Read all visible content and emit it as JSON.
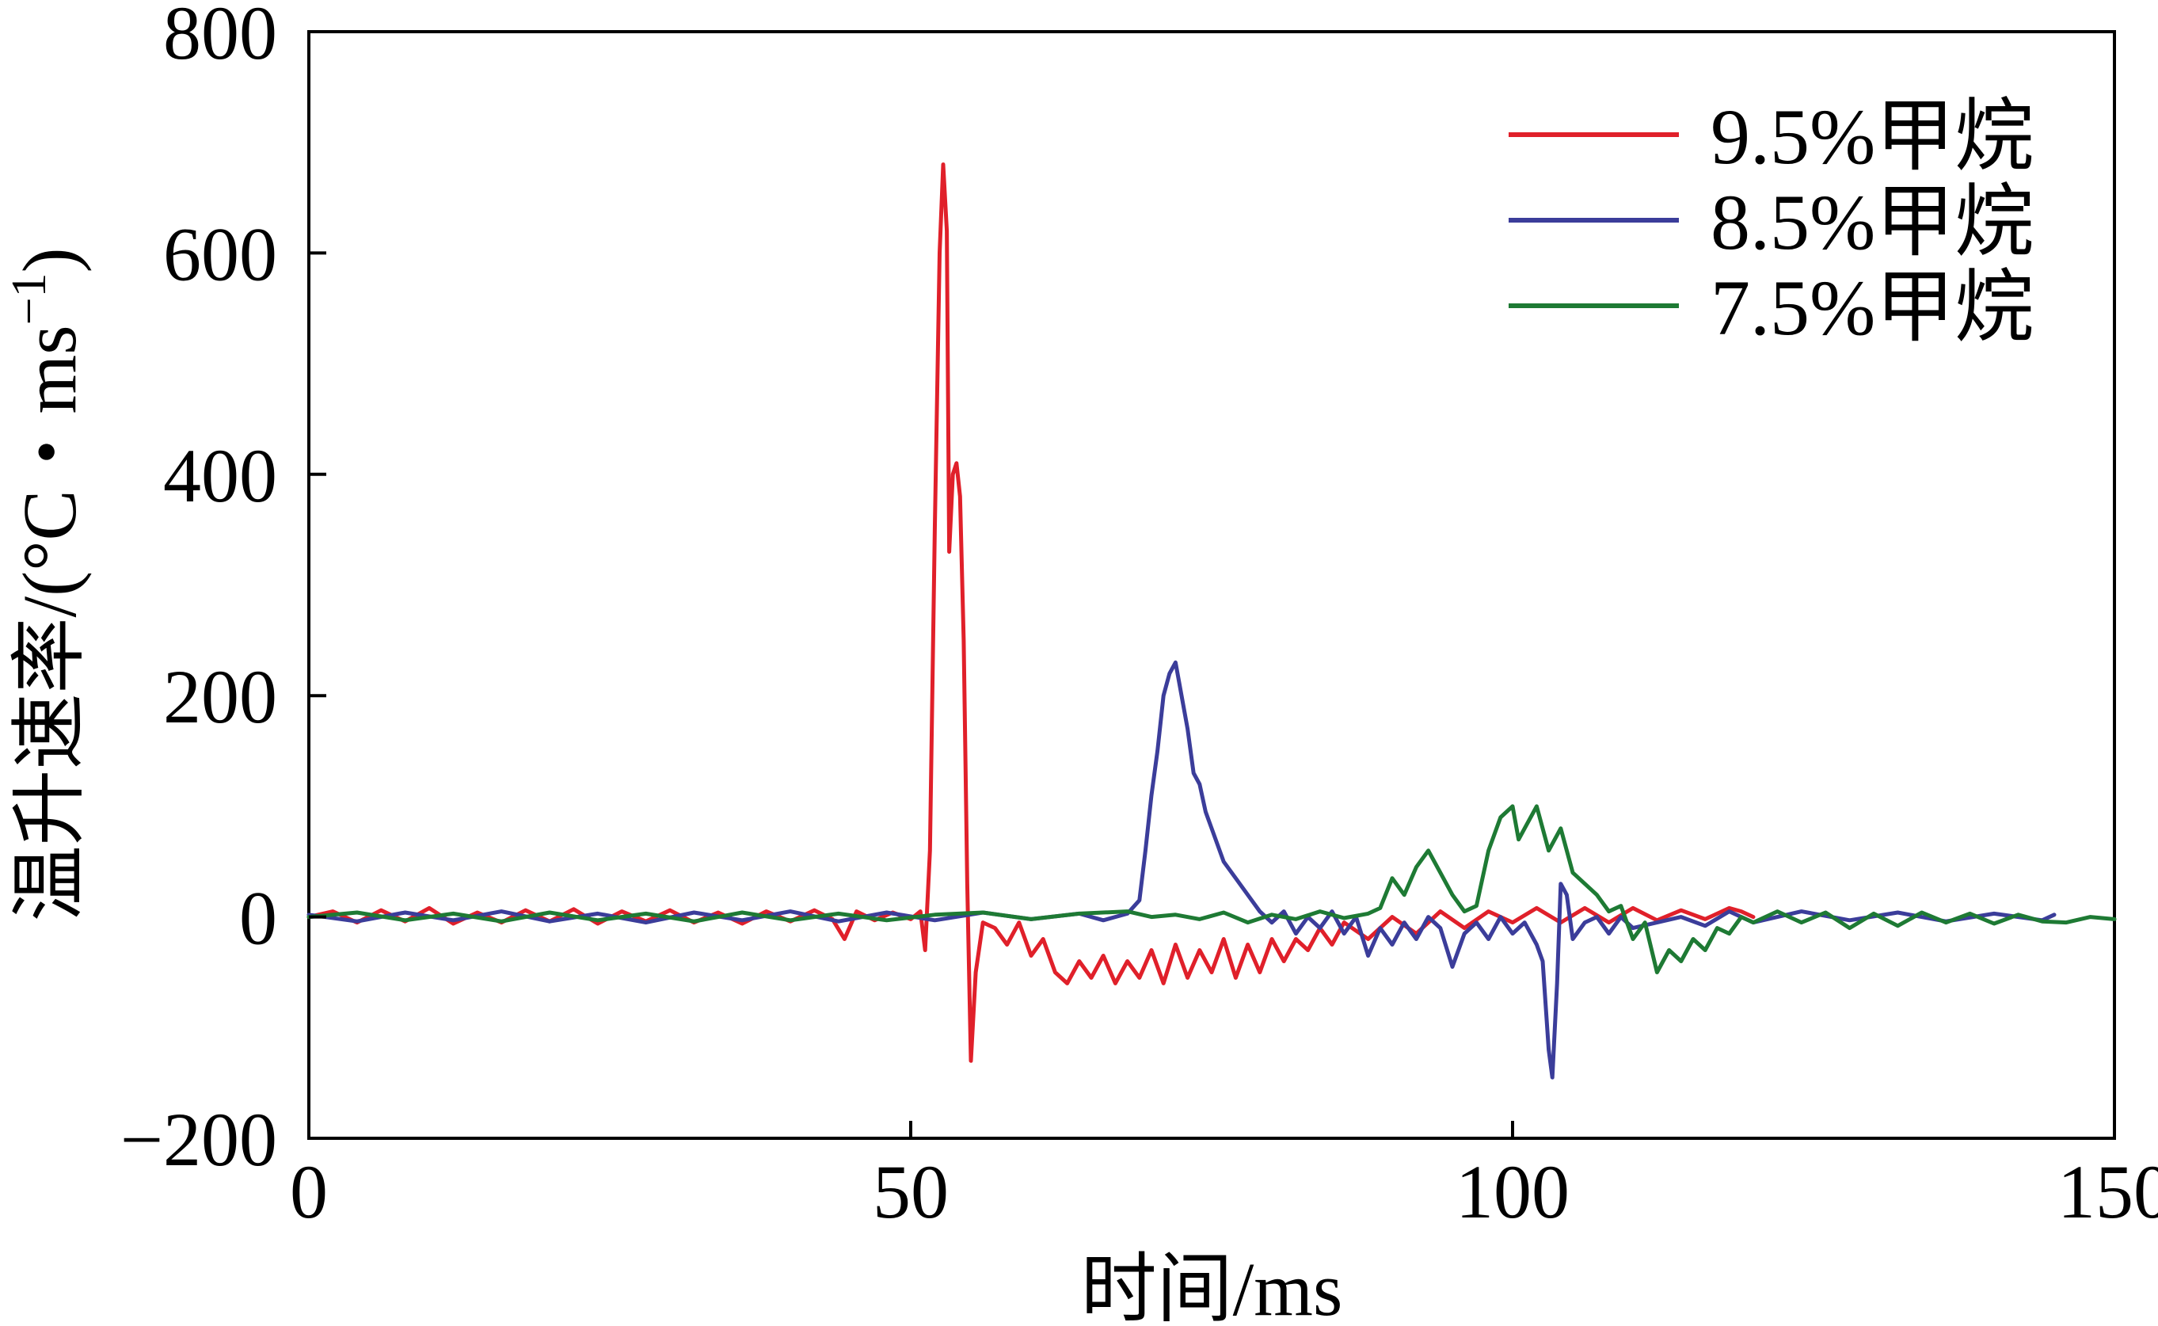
{
  "chart_data": {
    "type": "line",
    "title": "",
    "xlabel": "时间/ms",
    "ylabel": "温升速率/(°C・ms",
    "ylabel_sup": "−1",
    "ylabel_close": ")",
    "xlim": [
      0,
      150
    ],
    "ylim": [
      -200,
      800
    ],
    "xticks": [
      0,
      50,
      100,
      150
    ],
    "xtick_labels": [
      "0",
      "50",
      "100",
      "150"
    ],
    "yticks": [
      -200,
      0,
      200,
      400,
      600,
      800
    ],
    "ytick_labels": [
      "−200",
      "0",
      "200",
      "400",
      "600",
      "800"
    ],
    "grid": false,
    "legend_position": "top-right",
    "series": [
      {
        "name": "9.5%甲烷",
        "color": "#e0202a",
        "points": [
          [
            0,
            0
          ],
          [
            2,
            5
          ],
          [
            4,
            -5
          ],
          [
            6,
            6
          ],
          [
            8,
            -4
          ],
          [
            10,
            8
          ],
          [
            12,
            -6
          ],
          [
            14,
            4
          ],
          [
            16,
            -5
          ],
          [
            18,
            6
          ],
          [
            20,
            -4
          ],
          [
            22,
            7
          ],
          [
            24,
            -6
          ],
          [
            26,
            5
          ],
          [
            28,
            -4
          ],
          [
            30,
            6
          ],
          [
            32,
            -5
          ],
          [
            34,
            4
          ],
          [
            36,
            -6
          ],
          [
            38,
            5
          ],
          [
            40,
            -4
          ],
          [
            42,
            6
          ],
          [
            43.5,
            -2
          ],
          [
            44.5,
            -20
          ],
          [
            45.5,
            5
          ],
          [
            47,
            -3
          ],
          [
            48.5,
            4
          ],
          [
            50,
            -2
          ],
          [
            50.8,
            5
          ],
          [
            51.2,
            -30
          ],
          [
            51.6,
            60
          ],
          [
            52,
            350
          ],
          [
            52.4,
            600
          ],
          [
            52.7,
            680
          ],
          [
            53,
            620
          ],
          [
            53.2,
            330
          ],
          [
            53.5,
            400
          ],
          [
            53.8,
            410
          ],
          [
            54.1,
            380
          ],
          [
            54.4,
            250
          ],
          [
            54.7,
            30
          ],
          [
            55,
            -130
          ],
          [
            55.4,
            -50
          ],
          [
            56,
            -5
          ],
          [
            57,
            -10
          ],
          [
            58,
            -25
          ],
          [
            59,
            -5
          ],
          [
            60,
            -35
          ],
          [
            61,
            -20
          ],
          [
            62,
            -50
          ],
          [
            63,
            -60
          ],
          [
            64,
            -40
          ],
          [
            65,
            -55
          ],
          [
            66,
            -35
          ],
          [
            67,
            -60
          ],
          [
            68,
            -40
          ],
          [
            69,
            -55
          ],
          [
            70,
            -30
          ],
          [
            71,
            -60
          ],
          [
            72,
            -25
          ],
          [
            73,
            -55
          ],
          [
            74,
            -30
          ],
          [
            75,
            -50
          ],
          [
            76,
            -20
          ],
          [
            77,
            -55
          ],
          [
            78,
            -25
          ],
          [
            79,
            -50
          ],
          [
            80,
            -20
          ],
          [
            81,
            -40
          ],
          [
            82,
            -20
          ],
          [
            83,
            -30
          ],
          [
            84,
            -10
          ],
          [
            85,
            -25
          ],
          [
            86,
            -5
          ],
          [
            88,
            -20
          ],
          [
            90,
            0
          ],
          [
            92,
            -15
          ],
          [
            94,
            5
          ],
          [
            96,
            -10
          ],
          [
            98,
            5
          ],
          [
            100,
            -5
          ],
          [
            102,
            8
          ],
          [
            104,
            -5
          ],
          [
            106,
            8
          ],
          [
            108,
            -5
          ],
          [
            110,
            8
          ],
          [
            112,
            -3
          ],
          [
            114,
            6
          ],
          [
            116,
            -2
          ],
          [
            118,
            8
          ],
          [
            119,
            5
          ],
          [
            120,
            0
          ]
        ]
      },
      {
        "name": "8.5%甲烷",
        "color": "#3b3d9a",
        "points": [
          [
            0,
            2
          ],
          [
            4,
            -4
          ],
          [
            8,
            4
          ],
          [
            12,
            -3
          ],
          [
            16,
            5
          ],
          [
            20,
            -4
          ],
          [
            24,
            3
          ],
          [
            28,
            -5
          ],
          [
            32,
            4
          ],
          [
            36,
            -3
          ],
          [
            40,
            5
          ],
          [
            44,
            -4
          ],
          [
            48,
            4
          ],
          [
            52,
            -3
          ],
          [
            56,
            4
          ],
          [
            60,
            -2
          ],
          [
            64,
            3
          ],
          [
            66,
            -3
          ],
          [
            68,
            3
          ],
          [
            69,
            15
          ],
          [
            69.5,
            60
          ],
          [
            70,
            110
          ],
          [
            70.5,
            150
          ],
          [
            71,
            200
          ],
          [
            71.5,
            220
          ],
          [
            72,
            230
          ],
          [
            72.5,
            200
          ],
          [
            73,
            170
          ],
          [
            73.5,
            130
          ],
          [
            74,
            120
          ],
          [
            74.5,
            95
          ],
          [
            75,
            80
          ],
          [
            75.5,
            65
          ],
          [
            76,
            50
          ],
          [
            77,
            35
          ],
          [
            78,
            20
          ],
          [
            79,
            5
          ],
          [
            80,
            -5
          ],
          [
            81,
            5
          ],
          [
            82,
            -15
          ],
          [
            83,
            0
          ],
          [
            84,
            -10
          ],
          [
            85,
            5
          ],
          [
            86,
            -15
          ],
          [
            87,
            0
          ],
          [
            88,
            -35
          ],
          [
            89,
            -10
          ],
          [
            90,
            -25
          ],
          [
            91,
            -5
          ],
          [
            92,
            -20
          ],
          [
            93,
            0
          ],
          [
            94,
            -10
          ],
          [
            95,
            -45
          ],
          [
            96,
            -15
          ],
          [
            97,
            -5
          ],
          [
            98,
            -20
          ],
          [
            99,
            0
          ],
          [
            100,
            -15
          ],
          [
            101,
            -5
          ],
          [
            102,
            -25
          ],
          [
            102.5,
            -40
          ],
          [
            103,
            -120
          ],
          [
            103.3,
            -145
          ],
          [
            103.7,
            -60
          ],
          [
            104,
            30
          ],
          [
            104.5,
            20
          ],
          [
            105,
            -20
          ],
          [
            106,
            -5
          ],
          [
            107,
            0
          ],
          [
            108,
            -15
          ],
          [
            109,
            0
          ],
          [
            110,
            -10
          ],
          [
            112,
            -5
          ],
          [
            114,
            0
          ],
          [
            116,
            -8
          ],
          [
            118,
            5
          ],
          [
            120,
            -5
          ],
          [
            124,
            5
          ],
          [
            128,
            -3
          ],
          [
            132,
            4
          ],
          [
            136,
            -4
          ],
          [
            140,
            3
          ],
          [
            144,
            -3
          ],
          [
            145,
            2
          ]
        ]
      },
      {
        "name": "7.5%甲烷",
        "color": "#1e7a34",
        "points": [
          [
            0,
            0
          ],
          [
            4,
            4
          ],
          [
            8,
            -3
          ],
          [
            12,
            3
          ],
          [
            16,
            -4
          ],
          [
            20,
            4
          ],
          [
            24,
            -3
          ],
          [
            28,
            3
          ],
          [
            32,
            -4
          ],
          [
            36,
            4
          ],
          [
            40,
            -3
          ],
          [
            44,
            3
          ],
          [
            48,
            -3
          ],
          [
            52,
            2
          ],
          [
            56,
            4
          ],
          [
            60,
            -2
          ],
          [
            64,
            3
          ],
          [
            68,
            5
          ],
          [
            70,
            0
          ],
          [
            72,
            2
          ],
          [
            74,
            -2
          ],
          [
            76,
            4
          ],
          [
            78,
            -5
          ],
          [
            80,
            2
          ],
          [
            82,
            -2
          ],
          [
            84,
            5
          ],
          [
            86,
            -1
          ],
          [
            88,
            3
          ],
          [
            89,
            8
          ],
          [
            90,
            35
          ],
          [
            91,
            20
          ],
          [
            92,
            45
          ],
          [
            93,
            60
          ],
          [
            94,
            40
          ],
          [
            95,
            20
          ],
          [
            96,
            5
          ],
          [
            97,
            10
          ],
          [
            98,
            60
          ],
          [
            99,
            90
          ],
          [
            100,
            100
          ],
          [
            100.5,
            70
          ],
          [
            101,
            80
          ],
          [
            102,
            100
          ],
          [
            103,
            60
          ],
          [
            104,
            80
          ],
          [
            105,
            40
          ],
          [
            106,
            30
          ],
          [
            107,
            20
          ],
          [
            108,
            5
          ],
          [
            109,
            10
          ],
          [
            110,
            -20
          ],
          [
            111,
            -5
          ],
          [
            112,
            -50
          ],
          [
            113,
            -30
          ],
          [
            114,
            -40
          ],
          [
            115,
            -20
          ],
          [
            116,
            -30
          ],
          [
            117,
            -10
          ],
          [
            118,
            -15
          ],
          [
            119,
            0
          ],
          [
            120,
            -5
          ],
          [
            122,
            5
          ],
          [
            124,
            -5
          ],
          [
            126,
            4
          ],
          [
            128,
            -10
          ],
          [
            130,
            3
          ],
          [
            132,
            -8
          ],
          [
            134,
            4
          ],
          [
            136,
            -5
          ],
          [
            138,
            3
          ],
          [
            140,
            -6
          ],
          [
            142,
            2
          ],
          [
            144,
            -4
          ],
          [
            146,
            -5
          ],
          [
            148,
            0
          ],
          [
            150,
            -2
          ]
        ]
      }
    ]
  }
}
